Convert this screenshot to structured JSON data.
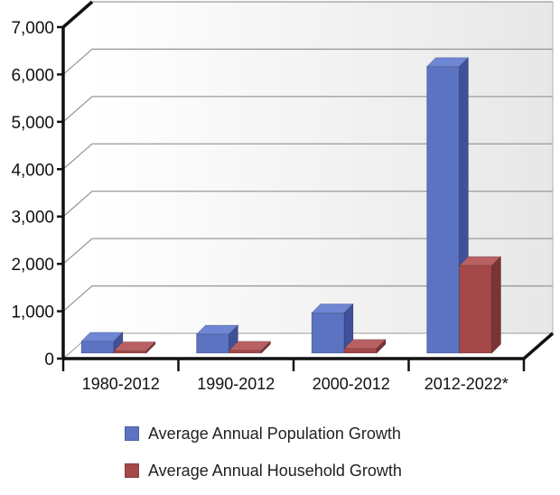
{
  "chart_data": {
    "type": "bar",
    "title": "",
    "xlabel": "",
    "ylabel": "",
    "ylim": [
      0,
      7000
    ],
    "yticks": [
      0,
      1000,
      2000,
      3000,
      4000,
      5000,
      6000,
      7000
    ],
    "ytick_labels": [
      "0",
      "1,000",
      "2,000",
      "3,000",
      "4,000",
      "5,000",
      "6,000",
      "7,000"
    ],
    "categories": [
      "1980-2012",
      "1990-2012",
      "2000-2012",
      "2012-2022*"
    ],
    "series": [
      {
        "name": "Average Annual Population Growth",
        "values": [
          250,
          400,
          850,
          6050
        ],
        "color": "#5B73C0",
        "color_top": "#6E86D3",
        "color_side": "#3F519A"
      },
      {
        "name": "Average Annual Household Growth",
        "values": [
          50,
          60,
          100,
          1850
        ],
        "color": "#A5484A",
        "color_top": "#B86062",
        "color_side": "#7A3336"
      }
    ],
    "grid": true,
    "legend_position": "bottom",
    "style": "3d"
  }
}
